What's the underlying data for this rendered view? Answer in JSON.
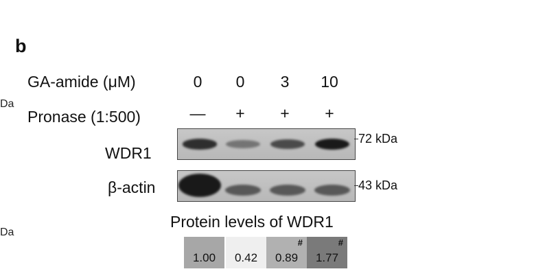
{
  "panel_letter": "b",
  "edge_labels": [
    "Da",
    "Da"
  ],
  "treatment": {
    "ga_label": "GA-amide (μM)",
    "ga_values": [
      "0",
      "0",
      "3",
      "10"
    ],
    "pronase_label": "Pronase (1:500)",
    "pronase_values": [
      "—",
      "+",
      "+",
      "+"
    ]
  },
  "blots": [
    {
      "label": "WDR1",
      "marker": "72 kDa",
      "band_intensity": [
        0.85,
        0.35,
        0.65,
        1.0
      ]
    },
    {
      "label": "β-actin",
      "marker": "43 kDa",
      "band_intensity": [
        1.0,
        0.55,
        0.55,
        0.55
      ]
    }
  ],
  "quantification": {
    "title": "Protein levels of WDR1",
    "cells": [
      {
        "value": "1.00",
        "mark": "",
        "fill": "#a7a7a7"
      },
      {
        "value": "0.42",
        "mark": "",
        "fill": "#efefef"
      },
      {
        "value": "0.89",
        "mark": "#",
        "fill": "#b1b1b1"
      },
      {
        "value": "1.77",
        "mark": "#",
        "fill": "#7a7a7a"
      }
    ]
  }
}
